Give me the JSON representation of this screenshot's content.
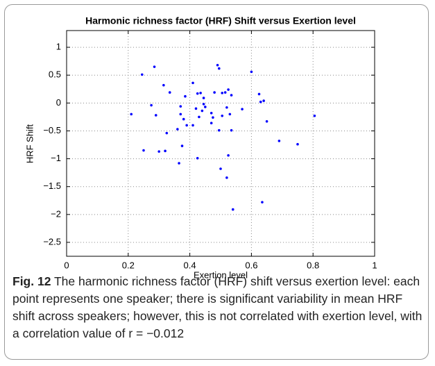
{
  "chart_data": {
    "type": "scatter",
    "title": "Harmonic richness factor (HRF) Shift versus Exertion level",
    "xlabel": "Exertion level",
    "ylabel": "HRF Shift",
    "x": [
      0.21,
      0.245,
      0.25,
      0.275,
      0.285,
      0.29,
      0.3,
      0.315,
      0.32,
      0.325,
      0.335,
      0.36,
      0.365,
      0.37,
      0.37,
      0.375,
      0.38,
      0.385,
      0.39,
      0.41,
      0.41,
      0.42,
      0.425,
      0.425,
      0.43,
      0.435,
      0.44,
      0.445,
      0.445,
      0.45,
      0.47,
      0.47,
      0.475,
      0.48,
      0.49,
      0.495,
      0.495,
      0.5,
      0.505,
      0.505,
      0.515,
      0.52,
      0.52,
      0.525,
      0.525,
      0.53,
      0.535,
      0.535,
      0.54,
      0.57,
      0.6,
      0.625,
      0.63,
      0.635,
      0.64,
      0.65,
      0.69,
      0.75,
      0.805
    ],
    "values": [
      -0.2,
      0.51,
      -0.85,
      -0.04,
      0.65,
      -0.22,
      -0.87,
      0.32,
      -0.86,
      -0.54,
      0.19,
      -0.47,
      -1.08,
      -0.2,
      -0.06,
      -0.77,
      -0.29,
      0.12,
      -0.4,
      0.36,
      -0.4,
      -0.1,
      0.17,
      -0.99,
      -0.25,
      0.18,
      -0.14,
      0.09,
      -0.02,
      -0.07,
      -0.18,
      -0.36,
      -0.26,
      0.19,
      0.68,
      0.62,
      -0.49,
      -1.18,
      0.18,
      -0.23,
      0.19,
      -1.34,
      -0.08,
      0.24,
      -0.94,
      -0.2,
      0.14,
      -0.49,
      -1.91,
      -0.11,
      0.56,
      0.16,
      0.02,
      -1.78,
      0.04,
      -0.33,
      -0.68,
      -0.74,
      -0.23
    ],
    "color": "#0000ff",
    "xlim": [
      0,
      1
    ],
    "xticks": [
      0,
      0.2,
      0.4,
      0.6,
      0.8,
      1
    ],
    "ylim": [
      -2.75,
      1.3
    ],
    "yticks": [
      {
        "value": -2.5,
        "label": "−2.5"
      },
      {
        "value": -2,
        "label": "−2"
      },
      {
        "value": -1.5,
        "label": "−1.5"
      },
      {
        "value": -1,
        "label": "−1"
      },
      {
        "value": -0.5,
        "label": "−0.5"
      },
      0,
      0.5,
      1
    ],
    "grid": true
  },
  "caption": {
    "label": "Fig. 12",
    "text": "The harmonic richness factor (HRF) shift versus exertion level: each point represents one speaker; there is significant variability in mean HRF shift across speakers; however, this is not correlated with exertion level, with a correlation value of r = −0.012"
  }
}
